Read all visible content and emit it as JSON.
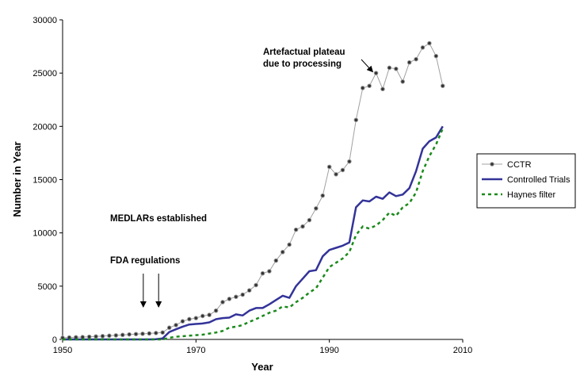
{
  "chart_data": {
    "type": "line",
    "xlabel": "Year",
    "ylabel": "Number in Year",
    "xlim": [
      1950,
      2010
    ],
    "ylim": [
      0,
      30000
    ],
    "xticks": [
      1950,
      1970,
      1990,
      2010
    ],
    "yticks": [
      0,
      5000,
      10000,
      15000,
      20000,
      25000,
      30000
    ],
    "legend_position": "right",
    "colors": {
      "CCTR_line": "#a0a0a0",
      "CCTR_marker": "#333333",
      "Controlled Trials": "#333399",
      "Haynes filter": "#1a8a1a"
    },
    "series": [
      {
        "name": "CCTR",
        "style": "line-with-markers",
        "x": [
          1950,
          1951,
          1952,
          1953,
          1954,
          1955,
          1956,
          1957,
          1958,
          1959,
          1960,
          1961,
          1962,
          1963,
          1964,
          1965,
          1966,
          1967,
          1968,
          1969,
          1970,
          1971,
          1972,
          1973,
          1974,
          1975,
          1976,
          1977,
          1978,
          1979,
          1980,
          1981,
          1982,
          1983,
          1984,
          1985,
          1986,
          1987,
          1988,
          1989,
          1990,
          1991,
          1992,
          1993,
          1994,
          1995,
          1996,
          1997,
          1998,
          1999,
          2000,
          2001,
          2002,
          2003,
          2004,
          2005,
          2006,
          2007
        ],
        "y": [
          150,
          180,
          200,
          220,
          250,
          280,
          310,
          350,
          380,
          420,
          470,
          500,
          530,
          560,
          600,
          650,
          1100,
          1350,
          1700,
          1900,
          2000,
          2200,
          2300,
          2700,
          3500,
          3800,
          4000,
          4200,
          4600,
          5100,
          6200,
          6400,
          7400,
          8200,
          8900,
          10300,
          10600,
          11200,
          12300,
          13500,
          16200,
          15500,
          15900,
          16700,
          20600,
          23600,
          23800,
          25000,
          23500,
          25500,
          25400,
          24200,
          26000,
          26300,
          27400,
          27800,
          26600,
          23800
        ]
      },
      {
        "name": "Controlled Trials",
        "style": "solid",
        "x": [
          1950,
          1955,
          1960,
          1963,
          1964,
          1965,
          1966,
          1967,
          1968,
          1969,
          1970,
          1971,
          1972,
          1973,
          1974,
          1975,
          1976,
          1977,
          1978,
          1979,
          1980,
          1981,
          1982,
          1983,
          1984,
          1985,
          1986,
          1987,
          1988,
          1989,
          1990,
          1991,
          1992,
          1993,
          1994,
          1995,
          1996,
          1997,
          1998,
          1999,
          2000,
          2001,
          2002,
          2003,
          2004,
          2005,
          2006,
          2007
        ],
        "y": [
          0,
          0,
          0,
          0,
          20,
          100,
          700,
          950,
          1200,
          1400,
          1450,
          1500,
          1600,
          1900,
          2000,
          2050,
          2350,
          2250,
          2700,
          2950,
          2950,
          3300,
          3700,
          4100,
          3900,
          5000,
          5700,
          6400,
          6500,
          7800,
          8400,
          8600,
          8800,
          9100,
          12400,
          13050,
          12950,
          13400,
          13200,
          13800,
          13450,
          13600,
          14200,
          15800,
          17900,
          18600,
          18950,
          20000
        ]
      },
      {
        "name": "Haynes filter",
        "style": "dashed",
        "x": [
          1950,
          1955,
          1960,
          1965,
          1966,
          1967,
          1968,
          1969,
          1970,
          1971,
          1972,
          1973,
          1974,
          1975,
          1976,
          1977,
          1978,
          1979,
          1980,
          1981,
          1982,
          1983,
          1984,
          1985,
          1986,
          1987,
          1988,
          1989,
          1990,
          1991,
          1992,
          1993,
          1994,
          1995,
          1996,
          1997,
          1998,
          1999,
          2000,
          2001,
          2002,
          2003,
          2004,
          2005,
          2006,
          2007
        ],
        "y": [
          0,
          0,
          0,
          0,
          150,
          250,
          300,
          350,
          400,
          450,
          550,
          650,
          800,
          1100,
          1200,
          1350,
          1650,
          1900,
          2200,
          2500,
          2700,
          3100,
          3000,
          3500,
          3900,
          4400,
          4800,
          5800,
          6800,
          7200,
          7600,
          8200,
          9800,
          10600,
          10400,
          10700,
          11200,
          11900,
          11600,
          12400,
          12800,
          13800,
          15800,
          17200,
          18300,
          19800
        ]
      }
    ],
    "annotations": [
      {
        "text_lines": [
          "Artefactual plateau",
          "due to processing"
        ],
        "arrow_to_year": 1996.5,
        "arrow_to_value": 24900
      },
      {
        "text_lines": [
          "MEDLARs established"
        ],
        "arrow_to_year": 1964.4,
        "arrow_to_value": 0
      },
      {
        "text_lines": [
          "FDA regulations"
        ],
        "arrow_to_year": 1962.1,
        "arrow_to_value": 0
      }
    ]
  }
}
